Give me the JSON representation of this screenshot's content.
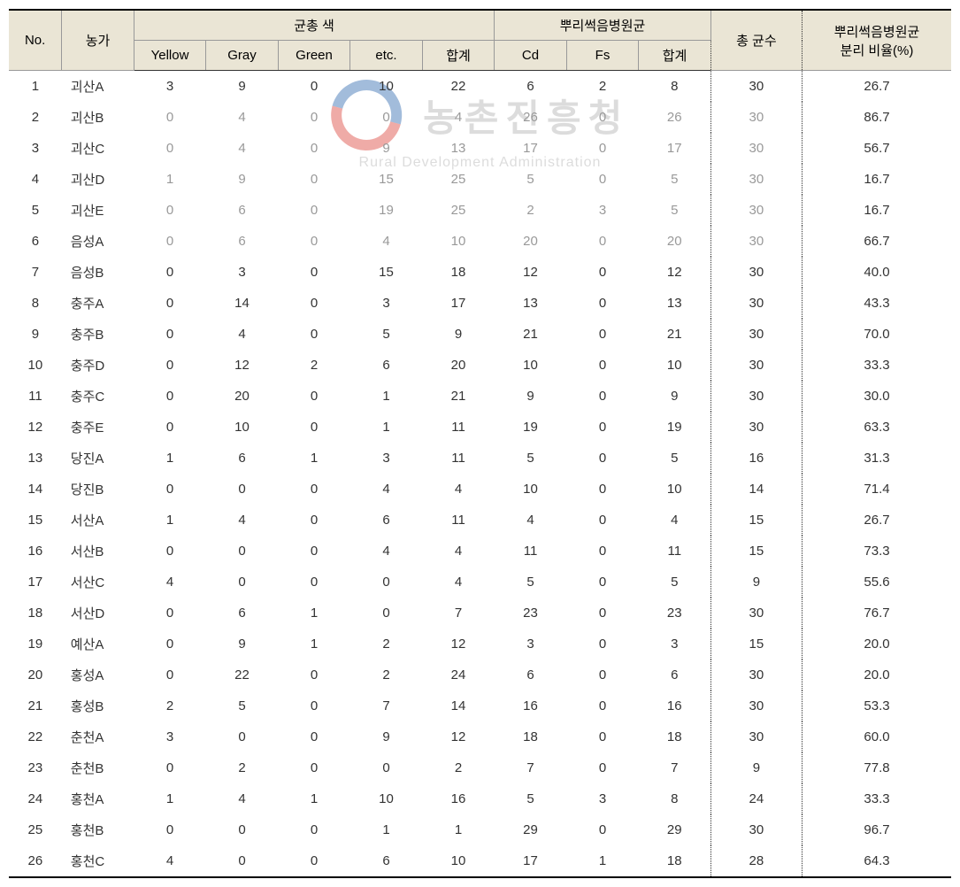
{
  "watermark": {
    "kr": "농촌진흥청",
    "en": "Rural Development Administration"
  },
  "headers": {
    "no": "No.",
    "farm": "농가",
    "color_group": "균총 색",
    "yellow": "Yellow",
    "gray": "Gray",
    "green": "Green",
    "etc": "etc.",
    "sum1": "합계",
    "pathogen_group": "뿌리썩음병원균",
    "cd": "Cd",
    "fs": "Fs",
    "sum2": "합계",
    "total": "총 균수",
    "ratio": "뿌리썩음병원균\n분리 비율(%)"
  },
  "rows": [
    {
      "no": "1",
      "farm": "괴산A",
      "yellow": "3",
      "gray": "9",
      "green": "0",
      "etc": "10",
      "sum1": "22",
      "cd": "6",
      "fs": "2",
      "sum2": "8",
      "total": "30",
      "ratio": "26.7",
      "faded": false
    },
    {
      "no": "2",
      "farm": "괴산B",
      "yellow": "0",
      "gray": "4",
      "green": "0",
      "etc": "0",
      "sum1": "4",
      "cd": "26",
      "fs": "0",
      "sum2": "26",
      "total": "30",
      "ratio": "86.7",
      "faded": true
    },
    {
      "no": "3",
      "farm": "괴산C",
      "yellow": "0",
      "gray": "4",
      "green": "0",
      "etc": "9",
      "sum1": "13",
      "cd": "17",
      "fs": "0",
      "sum2": "17",
      "total": "30",
      "ratio": "56.7",
      "faded": true
    },
    {
      "no": "4",
      "farm": "괴산D",
      "yellow": "1",
      "gray": "9",
      "green": "0",
      "etc": "15",
      "sum1": "25",
      "cd": "5",
      "fs": "0",
      "sum2": "5",
      "total": "30",
      "ratio": "16.7",
      "faded": true
    },
    {
      "no": "5",
      "farm": "괴산E",
      "yellow": "0",
      "gray": "6",
      "green": "0",
      "etc": "19",
      "sum1": "25",
      "cd": "2",
      "fs": "3",
      "sum2": "5",
      "total": "30",
      "ratio": "16.7",
      "faded": true
    },
    {
      "no": "6",
      "farm": "음성A",
      "yellow": "0",
      "gray": "6",
      "green": "0",
      "etc": "4",
      "sum1": "10",
      "cd": "20",
      "fs": "0",
      "sum2": "20",
      "total": "30",
      "ratio": "66.7",
      "faded": true
    },
    {
      "no": "7",
      "farm": "음성B",
      "yellow": "0",
      "gray": "3",
      "green": "0",
      "etc": "15",
      "sum1": "18",
      "cd": "12",
      "fs": "0",
      "sum2": "12",
      "total": "30",
      "ratio": "40.0",
      "faded": false
    },
    {
      "no": "8",
      "farm": "충주A",
      "yellow": "0",
      "gray": "14",
      "green": "0",
      "etc": "3",
      "sum1": "17",
      "cd": "13",
      "fs": "0",
      "sum2": "13",
      "total": "30",
      "ratio": "43.3",
      "faded": false
    },
    {
      "no": "9",
      "farm": "충주B",
      "yellow": "0",
      "gray": "4",
      "green": "0",
      "etc": "5",
      "sum1": "9",
      "cd": "21",
      "fs": "0",
      "sum2": "21",
      "total": "30",
      "ratio": "70.0",
      "faded": false
    },
    {
      "no": "10",
      "farm": "충주D",
      "yellow": "0",
      "gray": "12",
      "green": "2",
      "etc": "6",
      "sum1": "20",
      "cd": "10",
      "fs": "0",
      "sum2": "10",
      "total": "30",
      "ratio": "33.3",
      "faded": false
    },
    {
      "no": "11",
      "farm": "충주C",
      "yellow": "0",
      "gray": "20",
      "green": "0",
      "etc": "1",
      "sum1": "21",
      "cd": "9",
      "fs": "0",
      "sum2": "9",
      "total": "30",
      "ratio": "30.0",
      "faded": false
    },
    {
      "no": "12",
      "farm": "충주E",
      "yellow": "0",
      "gray": "10",
      "green": "0",
      "etc": "1",
      "sum1": "11",
      "cd": "19",
      "fs": "0",
      "sum2": "19",
      "total": "30",
      "ratio": "63.3",
      "faded": false
    },
    {
      "no": "13",
      "farm": "당진A",
      "yellow": "1",
      "gray": "6",
      "green": "1",
      "etc": "3",
      "sum1": "11",
      "cd": "5",
      "fs": "0",
      "sum2": "5",
      "total": "16",
      "ratio": "31.3",
      "faded": false
    },
    {
      "no": "14",
      "farm": "당진B",
      "yellow": "0",
      "gray": "0",
      "green": "0",
      "etc": "4",
      "sum1": "4",
      "cd": "10",
      "fs": "0",
      "sum2": "10",
      "total": "14",
      "ratio": "71.4",
      "faded": false
    },
    {
      "no": "15",
      "farm": "서산A",
      "yellow": "1",
      "gray": "4",
      "green": "0",
      "etc": "6",
      "sum1": "11",
      "cd": "4",
      "fs": "0",
      "sum2": "4",
      "total": "15",
      "ratio": "26.7",
      "faded": false
    },
    {
      "no": "16",
      "farm": "서산B",
      "yellow": "0",
      "gray": "0",
      "green": "0",
      "etc": "4",
      "sum1": "4",
      "cd": "11",
      "fs": "0",
      "sum2": "11",
      "total": "15",
      "ratio": "73.3",
      "faded": false
    },
    {
      "no": "17",
      "farm": "서산C",
      "yellow": "4",
      "gray": "0",
      "green": "0",
      "etc": "0",
      "sum1": "4",
      "cd": "5",
      "fs": "0",
      "sum2": "5",
      "total": "9",
      "ratio": "55.6",
      "faded": false
    },
    {
      "no": "18",
      "farm": "서산D",
      "yellow": "0",
      "gray": "6",
      "green": "1",
      "etc": "0",
      "sum1": "7",
      "cd": "23",
      "fs": "0",
      "sum2": "23",
      "total": "30",
      "ratio": "76.7",
      "faded": false
    },
    {
      "no": "19",
      "farm": "예산A",
      "yellow": "0",
      "gray": "9",
      "green": "1",
      "etc": "2",
      "sum1": "12",
      "cd": "3",
      "fs": "0",
      "sum2": "3",
      "total": "15",
      "ratio": "20.0",
      "faded": false
    },
    {
      "no": "20",
      "farm": "홍성A",
      "yellow": "0",
      "gray": "22",
      "green": "0",
      "etc": "2",
      "sum1": "24",
      "cd": "6",
      "fs": "0",
      "sum2": "6",
      "total": "30",
      "ratio": "20.0",
      "faded": false
    },
    {
      "no": "21",
      "farm": "홍성B",
      "yellow": "2",
      "gray": "5",
      "green": "0",
      "etc": "7",
      "sum1": "14",
      "cd": "16",
      "fs": "0",
      "sum2": "16",
      "total": "30",
      "ratio": "53.3",
      "faded": false
    },
    {
      "no": "22",
      "farm": "춘천A",
      "yellow": "3",
      "gray": "0",
      "green": "0",
      "etc": "9",
      "sum1": "12",
      "cd": "18",
      "fs": "0",
      "sum2": "18",
      "total": "30",
      "ratio": "60.0",
      "faded": false
    },
    {
      "no": "23",
      "farm": "춘천B",
      "yellow": "0",
      "gray": "2",
      "green": "0",
      "etc": "0",
      "sum1": "2",
      "cd": "7",
      "fs": "0",
      "sum2": "7",
      "total": "9",
      "ratio": "77.8",
      "faded": false
    },
    {
      "no": "24",
      "farm": "홍천A",
      "yellow": "1",
      "gray": "4",
      "green": "1",
      "etc": "10",
      "sum1": "16",
      "cd": "5",
      "fs": "3",
      "sum2": "8",
      "total": "24",
      "ratio": "33.3",
      "faded": false
    },
    {
      "no": "25",
      "farm": "홍천B",
      "yellow": "0",
      "gray": "0",
      "green": "0",
      "etc": "1",
      "sum1": "1",
      "cd": "29",
      "fs": "0",
      "sum2": "29",
      "total": "30",
      "ratio": "96.7",
      "faded": false
    },
    {
      "no": "26",
      "farm": "홍천C",
      "yellow": "4",
      "gray": "0",
      "green": "0",
      "etc": "6",
      "sum1": "10",
      "cd": "17",
      "fs": "1",
      "sum2": "18",
      "total": "28",
      "ratio": "64.3",
      "faded": false
    }
  ]
}
